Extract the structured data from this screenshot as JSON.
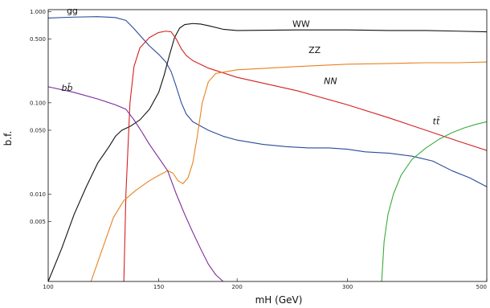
{
  "chart_data": {
    "type": "line",
    "title": "",
    "xlabel": "mH (GeV)",
    "ylabel": "b.f.",
    "x_scale": "log",
    "y_scale": "log",
    "xlim": [
      100,
      500
    ],
    "ylim": [
      0.0011,
      1.05
    ],
    "x_ticks": [
      {
        "value": 100,
        "label": "100"
      },
      {
        "value": 150,
        "label": "150"
      },
      {
        "value": 200,
        "label": "200"
      },
      {
        "value": 300,
        "label": "300"
      },
      {
        "value": 500,
        "label": "500"
      }
    ],
    "y_ticks": [
      {
        "value": 1.0,
        "label": "1.000"
      },
      {
        "value": 0.5,
        "label": "0.500"
      },
      {
        "value": 0.1,
        "label": "0.100"
      },
      {
        "value": 0.05,
        "label": "0.050"
      },
      {
        "value": 0.01,
        "label": "0.010"
      },
      {
        "value": 0.005,
        "label": "0.005"
      }
    ],
    "grid": false,
    "legend": "none (curves labelled inline)",
    "series": [
      {
        "name": "gg",
        "label": "gg",
        "color": "#2c4a9a",
        "label_at": [
          107,
          0.95
        ],
        "label_style": "normal",
        "points": [
          [
            100,
            0.85
          ],
          [
            110,
            0.87
          ],
          [
            120,
            0.88
          ],
          [
            128,
            0.86
          ],
          [
            133,
            0.8
          ],
          [
            137,
            0.65
          ],
          [
            141,
            0.52
          ],
          [
            145,
            0.42
          ],
          [
            150,
            0.34
          ],
          [
            154,
            0.28
          ],
          [
            157,
            0.22
          ],
          [
            160,
            0.15
          ],
          [
            163,
            0.1
          ],
          [
            166,
            0.075
          ],
          [
            170,
            0.062
          ],
          [
            180,
            0.05
          ],
          [
            190,
            0.043
          ],
          [
            200,
            0.039
          ],
          [
            220,
            0.035
          ],
          [
            240,
            0.033
          ],
          [
            260,
            0.032
          ],
          [
            280,
            0.032
          ],
          [
            300,
            0.031
          ],
          [
            320,
            0.029
          ],
          [
            350,
            0.028
          ],
          [
            380,
            0.026
          ],
          [
            410,
            0.023
          ],
          [
            440,
            0.018
          ],
          [
            470,
            0.015
          ],
          [
            500,
            0.012
          ]
        ]
      },
      {
        "name": "WW",
        "label": "WW",
        "color": "#111111",
        "label_at": [
          245,
          0.68
        ],
        "label_style": "normal",
        "points": [
          [
            100,
            0.0011
          ],
          [
            105,
            0.0025
          ],
          [
            110,
            0.006
          ],
          [
            115,
            0.012
          ],
          [
            120,
            0.022
          ],
          [
            125,
            0.033
          ],
          [
            128,
            0.043
          ],
          [
            131,
            0.05
          ],
          [
            135,
            0.055
          ],
          [
            140,
            0.065
          ],
          [
            145,
            0.085
          ],
          [
            150,
            0.13
          ],
          [
            153,
            0.2
          ],
          [
            156,
            0.33
          ],
          [
            159,
            0.52
          ],
          [
            162,
            0.66
          ],
          [
            165,
            0.72
          ],
          [
            170,
            0.74
          ],
          [
            175,
            0.73
          ],
          [
            180,
            0.7
          ],
          [
            190,
            0.64
          ],
          [
            200,
            0.62
          ],
          [
            250,
            0.63
          ],
          [
            300,
            0.63
          ],
          [
            350,
            0.62
          ],
          [
            400,
            0.62
          ],
          [
            450,
            0.61
          ],
          [
            500,
            0.6
          ]
        ]
      },
      {
        "name": "NN",
        "label": "NN",
        "color": "#d42020",
        "label_at": [
          275,
          0.16
        ],
        "label_style": "italic",
        "points": [
          [
            132,
            0.0011
          ],
          [
            133,
            0.01
          ],
          [
            135,
            0.1
          ],
          [
            137,
            0.25
          ],
          [
            140,
            0.4
          ],
          [
            145,
            0.52
          ],
          [
            150,
            0.59
          ],
          [
            154,
            0.61
          ],
          [
            157,
            0.6
          ],
          [
            160,
            0.5
          ],
          [
            163,
            0.39
          ],
          [
            166,
            0.33
          ],
          [
            170,
            0.29
          ],
          [
            180,
            0.24
          ],
          [
            200,
            0.19
          ],
          [
            250,
            0.135
          ],
          [
            300,
            0.095
          ],
          [
            350,
            0.068
          ],
          [
            400,
            0.05
          ],
          [
            450,
            0.038
          ],
          [
            500,
            0.03
          ]
        ]
      },
      {
        "name": "ZZ",
        "label": "ZZ",
        "color": "#e8821e",
        "label_at": [
          260,
          0.35
        ],
        "label_style": "normal",
        "points": [
          [
            117,
            0.0011
          ],
          [
            122,
            0.0025
          ],
          [
            127,
            0.0055
          ],
          [
            132,
            0.0085
          ],
          [
            138,
            0.011
          ],
          [
            145,
            0.014
          ],
          [
            150,
            0.016
          ],
          [
            155,
            0.018
          ],
          [
            158,
            0.017
          ],
          [
            161,
            0.014
          ],
          [
            164,
            0.013
          ],
          [
            167,
            0.015
          ],
          [
            170,
            0.022
          ],
          [
            173,
            0.045
          ],
          [
            176,
            0.1
          ],
          [
            180,
            0.17
          ],
          [
            185,
            0.21
          ],
          [
            200,
            0.23
          ],
          [
            250,
            0.25
          ],
          [
            300,
            0.265
          ],
          [
            350,
            0.27
          ],
          [
            400,
            0.275
          ],
          [
            450,
            0.275
          ],
          [
            500,
            0.28
          ]
        ]
      },
      {
        "name": "bb",
        "label": "bb̄",
        "color": "#7a2a9a",
        "label_at": [
          105,
          0.135
        ],
        "label_style": "italic",
        "points": [
          [
            100,
            0.15
          ],
          [
            110,
            0.13
          ],
          [
            120,
            0.11
          ],
          [
            128,
            0.095
          ],
          [
            133,
            0.085
          ],
          [
            137,
            0.065
          ],
          [
            141,
            0.048
          ],
          [
            145,
            0.035
          ],
          [
            150,
            0.025
          ],
          [
            155,
            0.018
          ],
          [
            160,
            0.01
          ],
          [
            165,
            0.006
          ],
          [
            170,
            0.0038
          ],
          [
            175,
            0.0025
          ],
          [
            180,
            0.0017
          ],
          [
            185,
            0.0013
          ],
          [
            190,
            0.0011
          ]
        ]
      },
      {
        "name": "tt",
        "label": "tt̄",
        "color": "#3daa3d",
        "label_at": [
          410,
          0.058
        ],
        "label_style": "italic",
        "points": [
          [
            340,
            0.0011
          ],
          [
            343,
            0.003
          ],
          [
            348,
            0.006
          ],
          [
            355,
            0.01
          ],
          [
            365,
            0.016
          ],
          [
            380,
            0.024
          ],
          [
            400,
            0.032
          ],
          [
            420,
            0.04
          ],
          [
            440,
            0.047
          ],
          [
            460,
            0.053
          ],
          [
            480,
            0.058
          ],
          [
            500,
            0.062
          ]
        ]
      }
    ]
  }
}
